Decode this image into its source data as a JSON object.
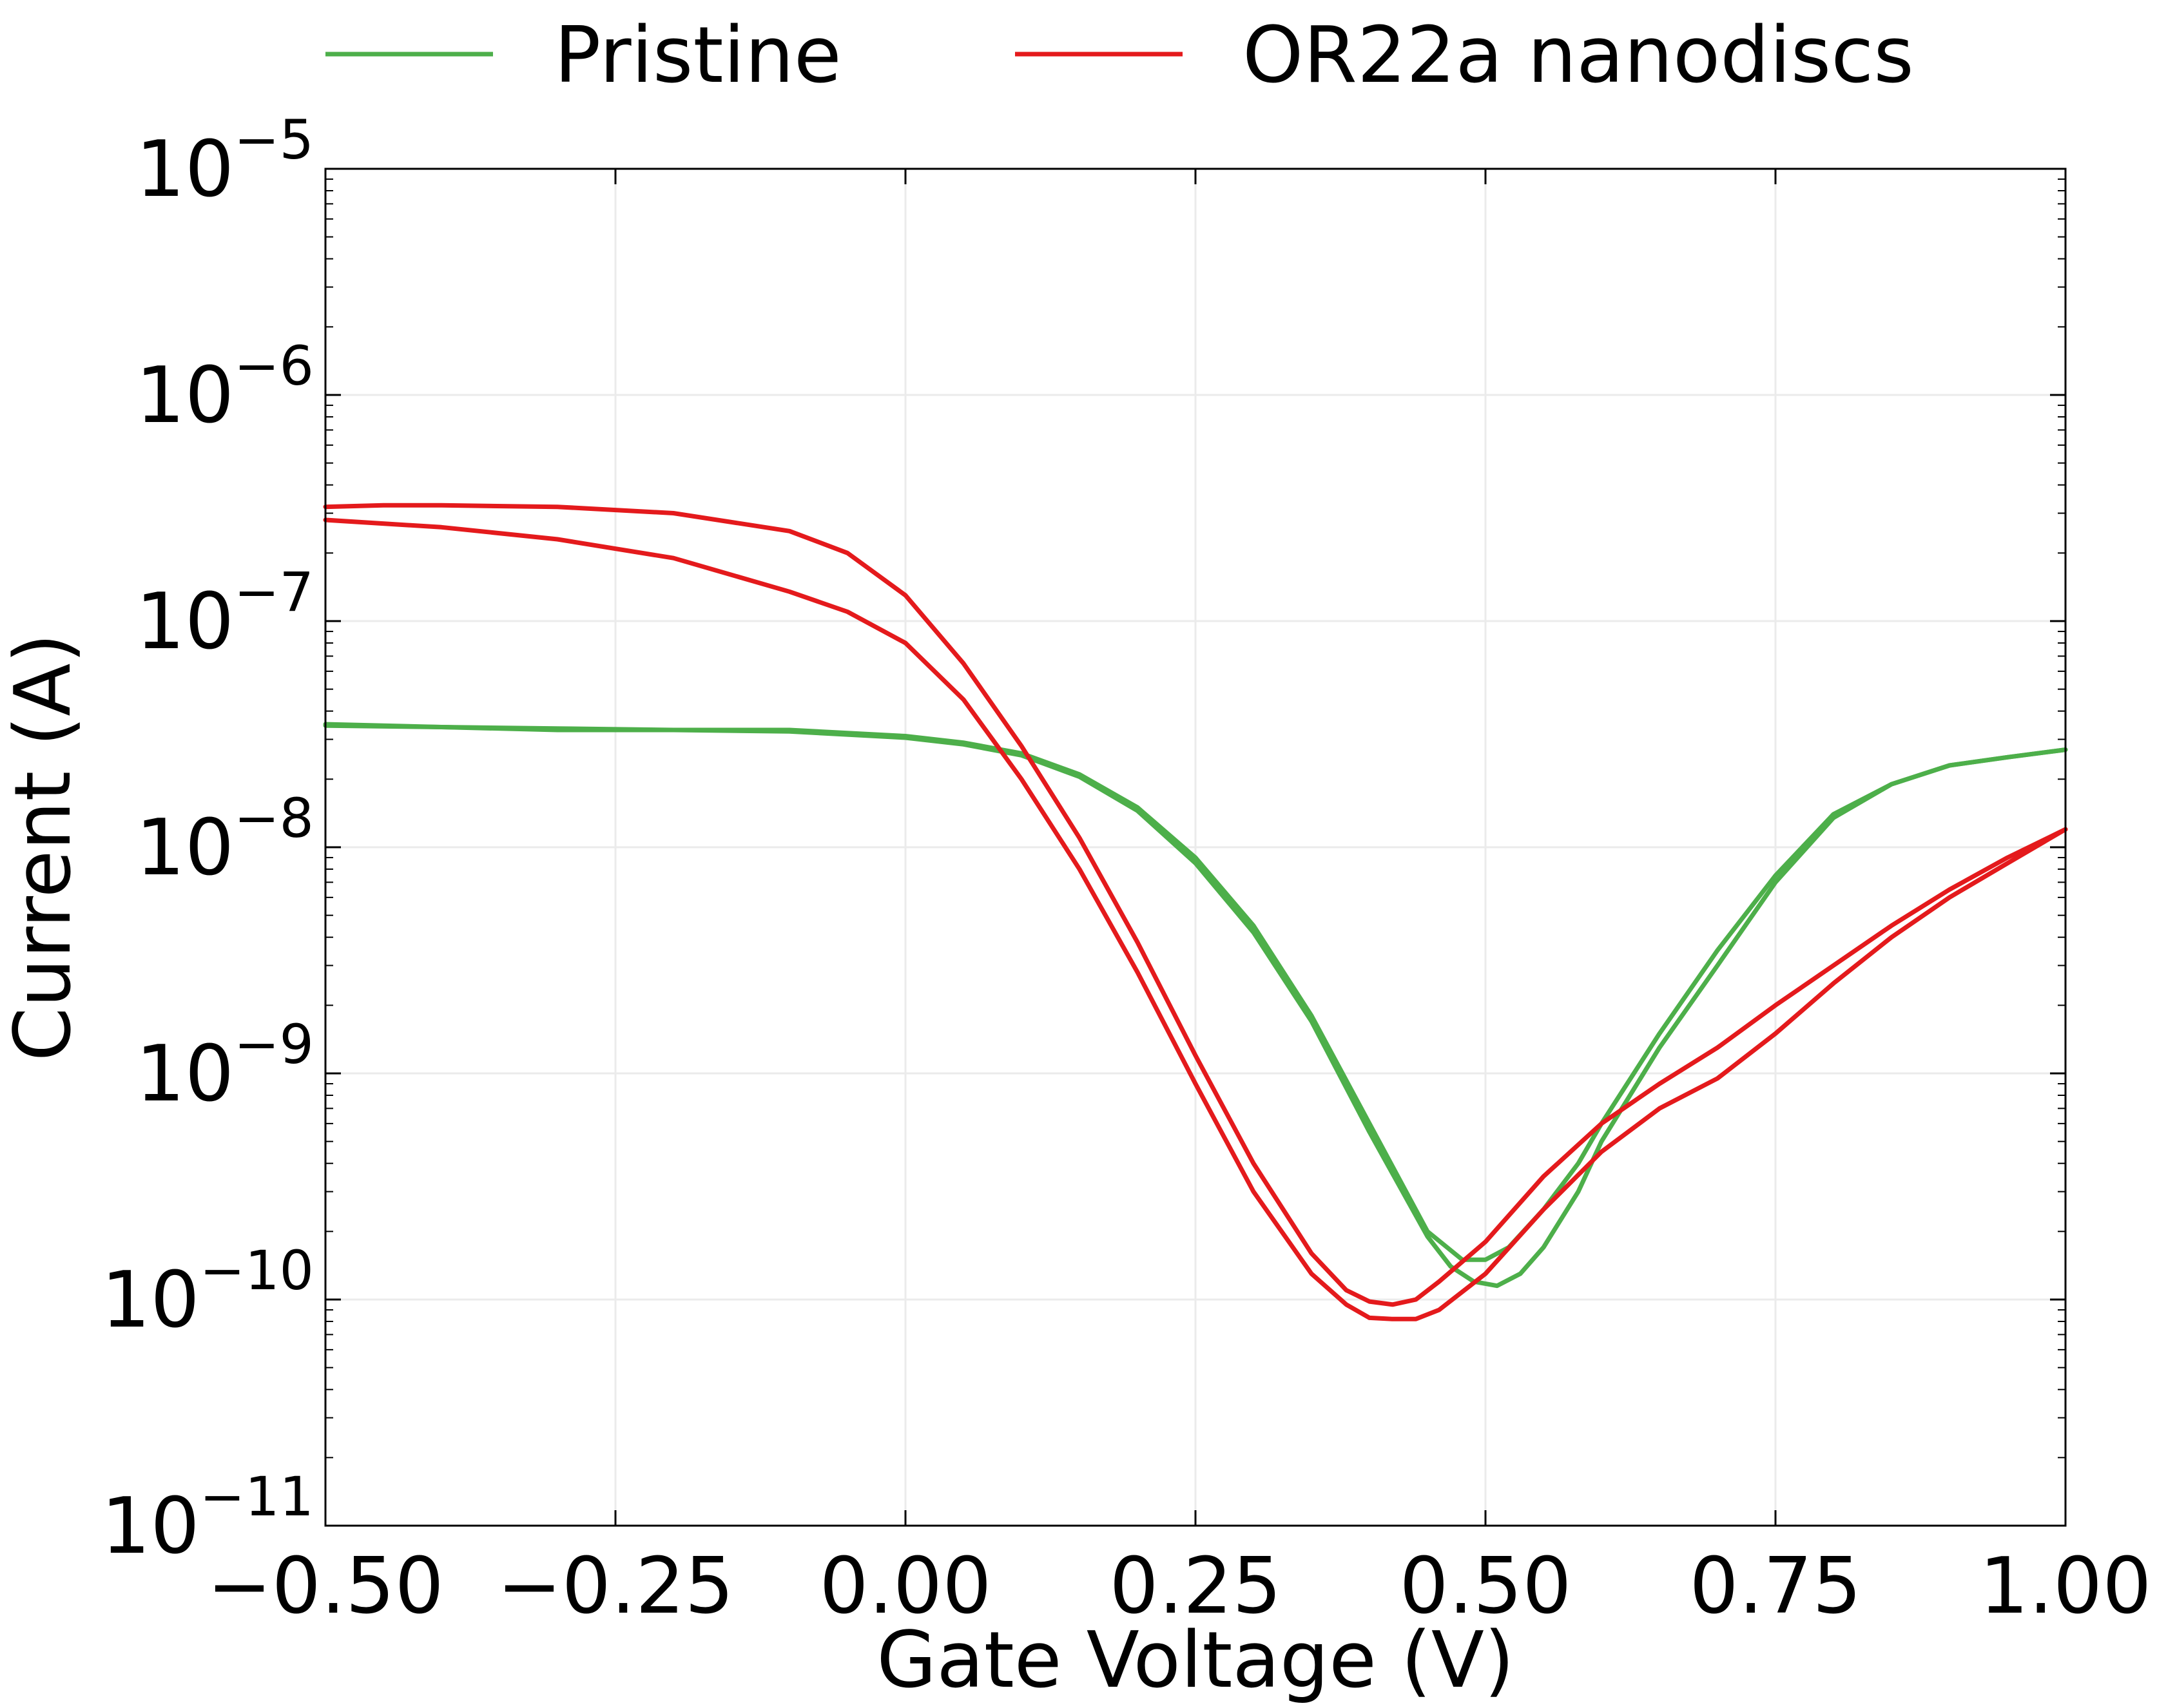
{
  "chart_data": {
    "type": "line",
    "xlabel": "Gate Voltage (V)",
    "ylabel": "Current (A)",
    "xlim": [
      -0.5,
      1.0
    ],
    "ylim": [
      1e-11,
      1e-05
    ],
    "yscale": "log",
    "grid": true,
    "legend": "top, outside plot area",
    "x_ticks": [
      "−0.50",
      "−0.25",
      "0.00",
      "0.25",
      "0.50",
      "0.75",
      "1.00"
    ],
    "x_tick_values": [
      -0.5,
      -0.25,
      0.0,
      0.25,
      0.5,
      0.75,
      1.0
    ],
    "y_ticks": [
      {
        "value": 1e-05,
        "base": "10",
        "exp": "−5"
      },
      {
        "value": 1e-06,
        "base": "10",
        "exp": "−6"
      },
      {
        "value": 1e-07,
        "base": "10",
        "exp": "−7"
      },
      {
        "value": 1e-08,
        "base": "10",
        "exp": "−8"
      },
      {
        "value": 1e-09,
        "base": "10",
        "exp": "−9"
      },
      {
        "value": 1e-10,
        "base": "10",
        "exp": "−10"
      },
      {
        "value": 1e-11,
        "base": "10",
        "exp": "−11"
      }
    ],
    "series": [
      {
        "name": "Pristine",
        "color": "#4daf4a",
        "sweeps": [
          {
            "x": [
              -0.5,
              -0.4,
              -0.3,
              -0.2,
              -0.1,
              0.0,
              0.05,
              0.1,
              0.15,
              0.2,
              0.25,
              0.3,
              0.35,
              0.4,
              0.45,
              0.48,
              0.5,
              0.52,
              0.55,
              0.58,
              0.6,
              0.65,
              0.7,
              0.75,
              0.8,
              0.85,
              0.9,
              0.95,
              1.0
            ],
            "y": [
              3.5e-08,
              3.4e-08,
              3.35e-08,
              3.3e-08,
              3.3e-08,
              3.1e-08,
              2.9e-08,
              2.6e-08,
              2.1e-08,
              1.5e-08,
              9e-09,
              4.5e-09,
              1.8e-09,
              6e-10,
              2e-10,
              1.5e-10,
              1.5e-10,
              1.7e-10,
              2.5e-10,
              4e-10,
              6e-10,
              1.5e-09,
              3.5e-09,
              7.5e-09,
              1.4e-08,
              1.9e-08,
              2.3e-08,
              2.5e-08,
              2.7e-08
            ]
          },
          {
            "x": [
              -0.5,
              -0.4,
              -0.3,
              -0.2,
              -0.1,
              0.0,
              0.05,
              0.1,
              0.15,
              0.2,
              0.25,
              0.3,
              0.35,
              0.4,
              0.45,
              0.47,
              0.49,
              0.51,
              0.53,
              0.55,
              0.58,
              0.6,
              0.65,
              0.7,
              0.75,
              0.8,
              0.85,
              0.9,
              0.95,
              1.0
            ],
            "y": [
              3.45e-08,
              3.4e-08,
              3.3e-08,
              3.3e-08,
              3.25e-08,
              3.05e-08,
              2.85e-08,
              2.55e-08,
              2.05e-08,
              1.45e-08,
              8.5e-09,
              4.2e-09,
              1.7e-09,
              5.5e-10,
              1.9e-10,
              1.4e-10,
              1.2e-10,
              1.15e-10,
              1.3e-10,
              1.7e-10,
              3e-10,
              5e-10,
              1.3e-09,
              3e-09,
              7e-09,
              1.35e-08,
              1.9e-08,
              2.3e-08,
              2.5e-08,
              2.7e-08
            ]
          }
        ]
      },
      {
        "name": "OR22a nanodiscs",
        "color": "#e41a1c",
        "sweeps": [
          {
            "x": [
              -0.5,
              -0.45,
              -0.4,
              -0.3,
              -0.2,
              -0.1,
              -0.05,
              0.0,
              0.05,
              0.1,
              0.15,
              0.2,
              0.25,
              0.3,
              0.35,
              0.38,
              0.4,
              0.42,
              0.44,
              0.46,
              0.5,
              0.55,
              0.6,
              0.65,
              0.7,
              0.75,
              0.8,
              0.85,
              0.9,
              0.95,
              1.0
            ],
            "y": [
              3.2e-07,
              3.25e-07,
              3.25e-07,
              3.2e-07,
              3e-07,
              2.5e-07,
              2e-07,
              1.3e-07,
              6.5e-08,
              2.8e-08,
              1.1e-08,
              3.8e-09,
              1.2e-09,
              4e-10,
              1.6e-10,
              1.1e-10,
              9.8e-11,
              9.5e-11,
              1e-10,
              1.2e-10,
              1.8e-10,
              3.5e-10,
              6e-10,
              9e-10,
              1.3e-09,
              2e-09,
              3e-09,
              4.5e-09,
              6.5e-09,
              9e-09,
              1.2e-08
            ]
          },
          {
            "x": [
              -0.5,
              -0.4,
              -0.3,
              -0.2,
              -0.1,
              -0.05,
              0.0,
              0.05,
              0.1,
              0.15,
              0.2,
              0.25,
              0.3,
              0.35,
              0.38,
              0.4,
              0.42,
              0.44,
              0.46,
              0.5,
              0.55,
              0.6,
              0.65,
              0.7,
              0.75,
              0.8,
              0.85,
              0.9,
              0.95,
              1.0
            ],
            "y": [
              2.8e-07,
              2.6e-07,
              2.3e-07,
              1.9e-07,
              1.35e-07,
              1.1e-07,
              8e-08,
              4.5e-08,
              2e-08,
              8e-09,
              2.8e-09,
              9e-10,
              3e-10,
              1.3e-10,
              9.5e-11,
              8.3e-11,
              8.2e-11,
              8.2e-11,
              9e-11,
              1.3e-10,
              2.5e-10,
              4.5e-10,
              7e-10,
              9.5e-10,
              1.5e-09,
              2.5e-09,
              4e-09,
              6e-09,
              8.5e-09,
              1.2e-08
            ]
          }
        ]
      }
    ]
  }
}
